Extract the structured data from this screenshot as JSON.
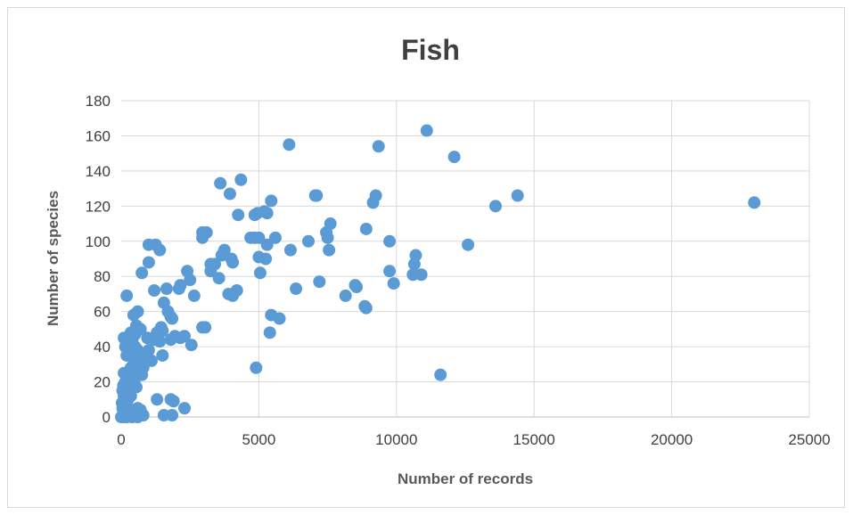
{
  "chart_data": {
    "type": "scatter",
    "title": "Fish",
    "xlabel": "Number of records",
    "ylabel": "Number of species",
    "xlim": [
      0,
      25000
    ],
    "ylim": [
      0,
      180
    ],
    "x_ticks": [
      0,
      5000,
      10000,
      15000,
      20000,
      25000
    ],
    "y_ticks": [
      0,
      20,
      40,
      60,
      80,
      100,
      120,
      140,
      160,
      180
    ],
    "grid": "major",
    "legend": "none",
    "marker_color": "#5b9bd5",
    "series": [
      {
        "points": [
          [
            23000,
            122
          ],
          [
            11100,
            163
          ],
          [
            12100,
            148
          ],
          [
            14400,
            126
          ],
          [
            13600,
            120
          ],
          [
            12600,
            98
          ],
          [
            11600,
            24
          ],
          [
            9350,
            154
          ],
          [
            9250,
            126
          ],
          [
            9150,
            122
          ],
          [
            8900,
            107
          ],
          [
            9750,
            100
          ],
          [
            9750,
            83
          ],
          [
            9900,
            76
          ],
          [
            10700,
            92
          ],
          [
            10650,
            87
          ],
          [
            10600,
            81
          ],
          [
            10900,
            81
          ],
          [
            8500,
            75
          ],
          [
            8550,
            74
          ],
          [
            8150,
            69
          ],
          [
            8850,
            63
          ],
          [
            8900,
            62
          ],
          [
            6100,
            155
          ],
          [
            7050,
            126
          ],
          [
            7100,
            126
          ],
          [
            7600,
            110
          ],
          [
            7450,
            105
          ],
          [
            7500,
            102
          ],
          [
            7550,
            95
          ],
          [
            6800,
            100
          ],
          [
            6150,
            95
          ],
          [
            7200,
            77
          ],
          [
            6350,
            73
          ],
          [
            5450,
            123
          ],
          [
            5300,
            116
          ],
          [
            5200,
            117
          ],
          [
            4950,
            116
          ],
          [
            4850,
            115
          ],
          [
            4850,
            102
          ],
          [
            4700,
            102
          ],
          [
            5000,
            102
          ],
          [
            5300,
            98
          ],
          [
            5600,
            102
          ],
          [
            5000,
            91
          ],
          [
            5250,
            90
          ],
          [
            5050,
            82
          ],
          [
            5450,
            58
          ],
          [
            5750,
            56
          ],
          [
            5400,
            48
          ],
          [
            4900,
            28
          ],
          [
            4350,
            135
          ],
          [
            3600,
            133
          ],
          [
            3950,
            127
          ],
          [
            4250,
            115
          ],
          [
            2950,
            105
          ],
          [
            3100,
            105
          ],
          [
            2950,
            102
          ],
          [
            3750,
            95
          ],
          [
            3650,
            92
          ],
          [
            3250,
            87
          ],
          [
            3400,
            87
          ],
          [
            4000,
            90
          ],
          [
            4050,
            88
          ],
          [
            3250,
            83
          ],
          [
            3550,
            79
          ],
          [
            4200,
            72
          ],
          [
            3900,
            70
          ],
          [
            4050,
            69
          ],
          [
            2400,
            83
          ],
          [
            2500,
            78
          ],
          [
            2150,
            75
          ],
          [
            2100,
            73
          ],
          [
            2650,
            69
          ],
          [
            2950,
            51
          ],
          [
            3050,
            51
          ],
          [
            2300,
            46
          ],
          [
            2150,
            45
          ],
          [
            2550,
            41
          ],
          [
            2300,
            5
          ],
          [
            1000,
            98
          ],
          [
            1250,
            98
          ],
          [
            1400,
            95
          ],
          [
            1000,
            88
          ],
          [
            750,
            82
          ],
          [
            1200,
            72
          ],
          [
            1650,
            73
          ],
          [
            1550,
            65
          ],
          [
            1700,
            60
          ],
          [
            1800,
            57
          ],
          [
            1850,
            56
          ],
          [
            1450,
            51
          ],
          [
            1500,
            49
          ],
          [
            1800,
            44
          ],
          [
            1950,
            46
          ],
          [
            1400,
            43
          ],
          [
            1200,
            44
          ],
          [
            1300,
            48
          ],
          [
            1500,
            35
          ],
          [
            1100,
            32
          ],
          [
            1000,
            38
          ],
          [
            850,
            34
          ],
          [
            800,
            28
          ],
          [
            750,
            24
          ],
          [
            650,
            30
          ],
          [
            950,
            45
          ],
          [
            700,
            50
          ],
          [
            600,
            60
          ],
          [
            450,
            58
          ],
          [
            550,
            52
          ],
          [
            500,
            47
          ],
          [
            350,
            48
          ],
          [
            400,
            44
          ],
          [
            200,
            69
          ],
          [
            100,
            45
          ],
          [
            250,
            44
          ],
          [
            150,
            40
          ],
          [
            200,
            35
          ],
          [
            300,
            35
          ],
          [
            400,
            38
          ],
          [
            500,
            40
          ],
          [
            600,
            38
          ],
          [
            650,
            35
          ],
          [
            550,
            32
          ],
          [
            450,
            30
          ],
          [
            350,
            28
          ],
          [
            250,
            25
          ],
          [
            150,
            20
          ],
          [
            100,
            25
          ],
          [
            50,
            15
          ],
          [
            100,
            12
          ],
          [
            200,
            15
          ],
          [
            300,
            22
          ],
          [
            400,
            25
          ],
          [
            500,
            22
          ],
          [
            550,
            17
          ],
          [
            350,
            12
          ],
          [
            250,
            10
          ],
          [
            150,
            8
          ],
          [
            50,
            5
          ],
          [
            100,
            3
          ],
          [
            200,
            5
          ],
          [
            300,
            3
          ],
          [
            400,
            4
          ],
          [
            600,
            5
          ],
          [
            700,
            4
          ],
          [
            800,
            1
          ],
          [
            500,
            1
          ],
          [
            300,
            1
          ],
          [
            150,
            1
          ],
          [
            50,
            1
          ],
          [
            100,
            0
          ],
          [
            200,
            0
          ],
          [
            400,
            0
          ],
          [
            600,
            0
          ],
          [
            1300,
            10
          ],
          [
            1800,
            10
          ],
          [
            1900,
            9
          ],
          [
            1550,
            1
          ],
          [
            1850,
            1
          ],
          [
            0,
            0
          ],
          [
            30,
            8
          ],
          [
            80,
            18
          ]
        ]
      }
    ]
  }
}
